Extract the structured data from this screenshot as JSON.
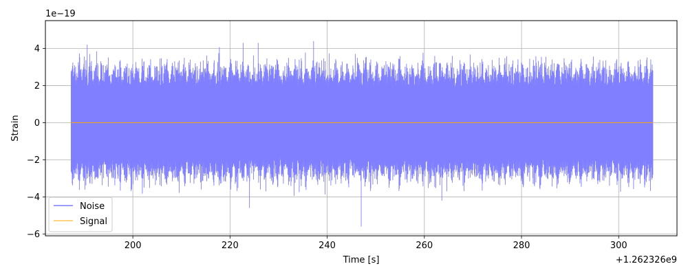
{
  "chart_data": {
    "type": "line",
    "title": "",
    "xlabel": "Time [s]",
    "ylabel": "Strain",
    "x_offset_label": "+1.262326e9",
    "y_exponent_label": "1e−19",
    "xlim": [
      182,
      312
    ],
    "ylim": [
      -6.1,
      5.5
    ],
    "x_ticks": [
      200,
      220,
      240,
      260,
      280,
      300
    ],
    "y_ticks": [
      -6,
      -4,
      -2,
      0,
      2,
      4
    ],
    "x_tick_labels": [
      "200",
      "220",
      "240",
      "260",
      "280",
      "300"
    ],
    "y_tick_labels": [
      "−6",
      "−4",
      "−2",
      "0",
      "2",
      "4"
    ],
    "grid": true,
    "legend": {
      "position": "lower-left"
    },
    "series": [
      {
        "name": "Noise",
        "color": "#7f7fff",
        "x_range": [
          187.3,
          307.1
        ],
        "approx_amplitude": 1.9,
        "min": -5.6,
        "max": 4.4
      },
      {
        "name": "Signal",
        "color": "#ffa500",
        "x_range": [
          187.3,
          307.1
        ],
        "y_value": 0
      }
    ]
  }
}
